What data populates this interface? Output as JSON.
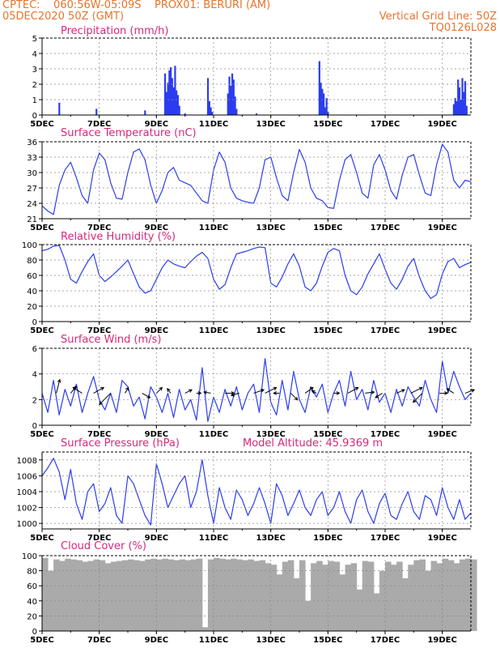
{
  "header": {
    "line1_left": "CPTEC:    060:56W-05:09S    PROX01: BERURI (AM)",
    "line2_left": "05DEC2020 50Z (GMT)",
    "line2_right": "Vertical Grid Line: 50Z",
    "line3_right": "TQ0126L028"
  },
  "colors": {
    "series": "#2b3cf0",
    "accent": "#e8742a",
    "title": "#d6287c",
    "cloud": "#aaaaaa",
    "wind": "#000000"
  },
  "x_axis": {
    "day_start": 5,
    "day_end": 20,
    "tick_labels": [
      "5DEC",
      "7DEC",
      "9DEC",
      "11DEC",
      "13DEC",
      "15DEC",
      "17DEC",
      "19DEC"
    ],
    "tick_days": [
      5,
      7,
      9,
      11,
      13,
      15,
      17,
      19
    ]
  },
  "chart_data": [
    {
      "type": "bar",
      "title": "Precipitation (mm/h)",
      "ylim": [
        0,
        5
      ],
      "yticks": [
        0,
        1,
        2,
        3,
        4,
        5
      ],
      "grid": true,
      "x": [
        5.6,
        6.9,
        8.6,
        9.3,
        9.35,
        9.4,
        9.45,
        9.5,
        9.55,
        9.6,
        9.65,
        9.7,
        9.75,
        9.8,
        10.0,
        10.8,
        10.85,
        10.9,
        10.95,
        11.5,
        11.55,
        11.6,
        11.65,
        11.7,
        11.75,
        11.8,
        12.5,
        14.7,
        14.75,
        14.8,
        14.85,
        14.9,
        14.95,
        15.0,
        19.4,
        19.45,
        19.5,
        19.55,
        19.6,
        19.65,
        19.7,
        19.75,
        19.8,
        19.85
      ],
      "values": [
        0.8,
        0.4,
        0.3,
        2.7,
        1.5,
        2.1,
        2.9,
        3.1,
        2.4,
        1.8,
        3.2,
        1.6,
        1.3,
        0.6,
        0.1,
        2.4,
        0.9,
        0.5,
        0.2,
        1.4,
        2.5,
        1.9,
        2.7,
        2.3,
        1.2,
        0.4,
        0.1,
        3.5,
        2.1,
        1.7,
        1.4,
        0.5,
        1.1,
        0.2,
        0.7,
        1.1,
        0.9,
        2.3,
        1.8,
        1.0,
        2.4,
        1.5,
        2.2,
        0.6
      ]
    },
    {
      "type": "line",
      "title": "Surface Temperature (nC)",
      "ylim": [
        21,
        36
      ],
      "yticks": [
        21,
        24,
        27,
        30,
        33,
        36
      ],
      "grid": true,
      "x": [
        5.0,
        5.2,
        5.4,
        5.6,
        5.8,
        6.0,
        6.2,
        6.4,
        6.6,
        6.8,
        7.0,
        7.2,
        7.4,
        7.6,
        7.8,
        8.0,
        8.2,
        8.4,
        8.6,
        8.8,
        9.0,
        9.2,
        9.4,
        9.6,
        9.8,
        10.0,
        10.2,
        10.4,
        10.6,
        10.8,
        11.0,
        11.2,
        11.4,
        11.6,
        11.8,
        12.0,
        12.2,
        12.4,
        12.6,
        12.8,
        13.0,
        13.2,
        13.4,
        13.6,
        13.8,
        14.0,
        14.2,
        14.4,
        14.6,
        14.8,
        15.0,
        15.2,
        15.4,
        15.6,
        15.8,
        16.0,
        16.2,
        16.4,
        16.6,
        16.8,
        17.0,
        17.2,
        17.4,
        17.6,
        17.8,
        18.0,
        18.2,
        18.4,
        18.6,
        18.8,
        19.0,
        19.2,
        19.4,
        19.6,
        19.8,
        20.0
      ],
      "values": [
        23.5,
        22.5,
        21.8,
        27.5,
        30.5,
        32.0,
        29.0,
        25.5,
        24.0,
        30.5,
        33.8,
        32.5,
        28.0,
        25.0,
        24.8,
        30.0,
        34.0,
        34.6,
        32.5,
        27.5,
        24.0,
        26.5,
        30.0,
        31.0,
        28.5,
        28.0,
        27.5,
        26.0,
        24.5,
        24.0,
        30.5,
        34.0,
        32.0,
        27.0,
        25.0,
        24.5,
        24.2,
        24.0,
        27.0,
        32.5,
        33.0,
        29.0,
        25.5,
        24.5,
        30.0,
        34.5,
        32.0,
        27.0,
        25.0,
        24.5,
        23.2,
        23.0,
        28.5,
        32.5,
        33.5,
        30.0,
        26.0,
        25.0,
        31.5,
        33.5,
        30.5,
        26.5,
        24.8,
        29.5,
        33.0,
        33.5,
        29.5,
        26.0,
        25.5,
        31.5,
        35.5,
        34.0,
        28.5,
        27.0,
        28.5,
        28.2
      ]
    },
    {
      "type": "line",
      "title": "Relative Humidity (%)",
      "ylim": [
        0,
        100
      ],
      "yticks": [
        0,
        20,
        40,
        60,
        80,
        100
      ],
      "grid": true,
      "x": [
        5.0,
        5.2,
        5.4,
        5.6,
        5.8,
        6.0,
        6.2,
        6.4,
        6.6,
        6.8,
        7.0,
        7.2,
        7.4,
        7.6,
        7.8,
        8.0,
        8.2,
        8.4,
        8.6,
        8.8,
        9.0,
        9.2,
        9.4,
        9.6,
        9.8,
        10.0,
        10.2,
        10.4,
        10.6,
        10.8,
        11.0,
        11.2,
        11.4,
        11.6,
        11.8,
        12.0,
        12.2,
        12.4,
        12.6,
        12.8,
        13.0,
        13.2,
        13.4,
        13.6,
        13.8,
        14.0,
        14.2,
        14.4,
        14.6,
        14.8,
        15.0,
        15.2,
        15.4,
        15.6,
        15.8,
        16.0,
        16.2,
        16.4,
        16.6,
        16.8,
        17.0,
        17.2,
        17.4,
        17.6,
        17.8,
        18.0,
        18.2,
        18.4,
        18.6,
        18.8,
        19.0,
        19.2,
        19.4,
        19.6,
        19.8,
        20.0
      ],
      "values": [
        92,
        94,
        98,
        99,
        80,
        55,
        50,
        65,
        78,
        88,
        60,
        52,
        58,
        65,
        72,
        80,
        62,
        45,
        37,
        40,
        55,
        70,
        80,
        75,
        72,
        70,
        78,
        85,
        90,
        82,
        55,
        42,
        48,
        70,
        88,
        90,
        92,
        95,
        97,
        96,
        50,
        45,
        58,
        75,
        88,
        72,
        45,
        40,
        50,
        72,
        90,
        95,
        92,
        60,
        40,
        35,
        45,
        62,
        75,
        88,
        68,
        50,
        42,
        55,
        72,
        82,
        58,
        40,
        30,
        35,
        62,
        78,
        82,
        70,
        74,
        77
      ]
    },
    {
      "type": "line",
      "title": "Surface Wind (m/s)",
      "ylim": [
        0,
        6
      ],
      "yticks": [
        0,
        2,
        4,
        6
      ],
      "grid": true,
      "x": [
        5.0,
        5.2,
        5.4,
        5.6,
        5.8,
        6.0,
        6.2,
        6.4,
        6.6,
        6.8,
        7.0,
        7.2,
        7.4,
        7.6,
        7.8,
        8.0,
        8.2,
        8.4,
        8.6,
        8.8,
        9.0,
        9.2,
        9.4,
        9.6,
        9.8,
        10.0,
        10.2,
        10.4,
        10.6,
        10.8,
        11.0,
        11.2,
        11.4,
        11.6,
        11.8,
        12.0,
        12.2,
        12.4,
        12.6,
        12.8,
        13.0,
        13.2,
        13.4,
        13.6,
        13.8,
        14.0,
        14.2,
        14.4,
        14.6,
        14.8,
        15.0,
        15.2,
        15.4,
        15.6,
        15.8,
        16.0,
        16.2,
        16.4,
        16.6,
        16.8,
        17.0,
        17.2,
        17.4,
        17.6,
        17.8,
        18.0,
        18.2,
        18.4,
        18.6,
        18.8,
        19.0,
        19.2,
        19.4,
        19.6,
        19.8,
        20.0
      ],
      "values": [
        2.5,
        1.0,
        3.5,
        0.8,
        2.8,
        1.5,
        3.2,
        1.0,
        2.5,
        3.8,
        2.0,
        1.2,
        2.5,
        1.0,
        3.5,
        3.0,
        1.5,
        2.2,
        0.5,
        3.0,
        2.2,
        1.0,
        2.5,
        0.6,
        2.8,
        1.2,
        2.0,
        0.4,
        4.5,
        0.3,
        2.2,
        1.0,
        2.8,
        1.5,
        3.0,
        1.2,
        2.5,
        3.2,
        1.0,
        5.2,
        1.8,
        0.8,
        3.5,
        1.2,
        4.2,
        2.0,
        1.0,
        3.0,
        2.2,
        3.2,
        1.0,
        2.5,
        3.5,
        1.5,
        4.2,
        2.0,
        2.8,
        1.2,
        3.5,
        1.8,
        2.5,
        1.0,
        2.8,
        1.5,
        3.0,
        2.2,
        1.5,
        3.5,
        2.0,
        1.0,
        5.0,
        2.5,
        4.2,
        3.0,
        2.0,
        2.5
      ],
      "arrows": {
        "x": [
          5.5,
          6.0,
          6.4,
          6.8,
          7.4,
          7.9,
          8.5,
          9.0,
          9.5,
          10.0,
          10.4,
          10.9,
          11.4,
          11.9,
          12.4,
          12.8,
          13.3,
          13.7,
          14.2,
          14.6,
          15.2,
          15.7,
          16.3,
          16.9,
          17.4,
          17.9,
          18.3,
          18.9,
          19.4,
          19.8
        ],
        "u": [
          0.3,
          0.5,
          -0.8,
          0.9,
          -1.0,
          0.3,
          0.7,
          0.5,
          -0.3,
          0.6,
          0.4,
          -0.6,
          0.8,
          -0.7,
          0.9,
          1.0,
          -0.5,
          0.6,
          0.7,
          -0.4,
          0.5,
          0.9,
          0.8,
          -0.6,
          0.7,
          1.0,
          -0.8,
          0.7,
          -0.6,
          0.8
        ],
        "v": [
          1.2,
          0.6,
          0.5,
          0.5,
          -1.0,
          0.5,
          -0.4,
          0.5,
          0.4,
          0.3,
          0.0,
          0.1,
          0.0,
          -0.2,
          0.3,
          0.5,
          0.0,
          -0.6,
          0.5,
          0.2,
          0.0,
          0.5,
          0.1,
          -0.4,
          0.3,
          0.5,
          -0.8,
          0.0,
          0.4,
          0.3
        ]
      }
    },
    {
      "type": "line",
      "title": "Surface Pressure (hPa)",
      "annotation": "Model Altitude: 45.9369 m",
      "ylim": [
        999.3,
        1009
      ],
      "yticks": [
        1000,
        1002,
        1004,
        1006,
        1008
      ],
      "grid": true,
      "x": [
        5.0,
        5.2,
        5.4,
        5.6,
        5.8,
        6.0,
        6.2,
        6.4,
        6.6,
        6.8,
        7.0,
        7.2,
        7.4,
        7.6,
        7.8,
        8.0,
        8.2,
        8.4,
        8.6,
        8.8,
        9.0,
        9.2,
        9.4,
        9.6,
        9.8,
        10.0,
        10.2,
        10.4,
        10.6,
        10.8,
        11.0,
        11.2,
        11.4,
        11.6,
        11.8,
        12.0,
        12.2,
        12.4,
        12.6,
        12.8,
        13.0,
        13.2,
        13.4,
        13.6,
        13.8,
        14.0,
        14.2,
        14.4,
        14.6,
        14.8,
        15.0,
        15.2,
        15.4,
        15.6,
        15.8,
        16.0,
        16.2,
        16.4,
        16.6,
        16.8,
        17.0,
        17.2,
        17.4,
        17.6,
        17.8,
        18.0,
        18.2,
        18.4,
        18.6,
        18.8,
        19.0,
        19.2,
        19.4,
        19.6,
        19.8,
        20.0
      ],
      "values": [
        1006.0,
        1007.0,
        1008.2,
        1006.5,
        1003.0,
        1006.8,
        1002.5,
        1000.5,
        1004.0,
        1005.0,
        1001.5,
        1002.5,
        1004.5,
        1001.0,
        1000.0,
        1006.0,
        1005.0,
        1003.0,
        1001.0,
        999.8,
        1007.5,
        1005.0,
        1002.0,
        1003.5,
        1005.0,
        1006.0,
        1002.0,
        1004.0,
        1008.0,
        1003.5,
        1000.0,
        1004.5,
        1002.0,
        1000.5,
        1004.2,
        1003.0,
        1001.0,
        1002.5,
        1004.5,
        1002.5,
        1000.0,
        1005.0,
        1003.5,
        1001.0,
        1002.5,
        1004.2,
        1002.0,
        1001.0,
        1003.0,
        1004.0,
        1001.0,
        1002.0,
        1004.0,
        1001.5,
        1000.0,
        1003.0,
        1004.2,
        1001.5,
        1000.0,
        1002.5,
        1003.8,
        1001.0,
        1000.5,
        1002.5,
        1004.0,
        1001.5,
        1000.5,
        1003.5,
        1003.0,
        1001.0,
        1004.5,
        1002.0,
        1000.5,
        1003.0,
        1000.5,
        1001.3
      ]
    },
    {
      "type": "area",
      "title": "Cloud Cover (%)",
      "ylim": [
        0,
        100
      ],
      "yticks": [
        0,
        20,
        40,
        60,
        80,
        100
      ],
      "grid": true,
      "x": [
        5.0,
        5.2,
        5.4,
        5.6,
        5.8,
        6.0,
        6.2,
        6.4,
        6.6,
        6.8,
        7.0,
        7.2,
        7.4,
        7.6,
        7.8,
        8.0,
        8.2,
        8.4,
        8.6,
        8.8,
        9.0,
        9.2,
        9.4,
        9.6,
        9.8,
        10.0,
        10.2,
        10.4,
        10.6,
        10.8,
        11.0,
        11.2,
        11.4,
        11.6,
        11.8,
        12.0,
        12.2,
        12.4,
        12.6,
        12.8,
        13.0,
        13.2,
        13.4,
        13.6,
        13.8,
        14.0,
        14.2,
        14.4,
        14.6,
        14.8,
        15.0,
        15.2,
        15.4,
        15.6,
        15.8,
        16.0,
        16.2,
        16.4,
        16.6,
        16.8,
        17.0,
        17.2,
        17.4,
        17.6,
        17.8,
        18.0,
        18.2,
        18.4,
        18.6,
        18.8,
        19.0,
        19.2,
        19.4,
        19.6,
        19.8,
        20.0
      ],
      "values": [
        97,
        80,
        95,
        93,
        96,
        95,
        94,
        92,
        93,
        95,
        94,
        90,
        92,
        93,
        94,
        95,
        94,
        93,
        95,
        96,
        95,
        96,
        95,
        94,
        95,
        94,
        95,
        96,
        5,
        95,
        97,
        96,
        95,
        96,
        95,
        94,
        95,
        93,
        94,
        90,
        88,
        75,
        92,
        94,
        70,
        94,
        40,
        90,
        93,
        88,
        93,
        92,
        75,
        88,
        90,
        55,
        93,
        92,
        50,
        80,
        92,
        88,
        92,
        70,
        88,
        94,
        95,
        80,
        93,
        90,
        96,
        94,
        90,
        95,
        96,
        95
      ]
    }
  ]
}
